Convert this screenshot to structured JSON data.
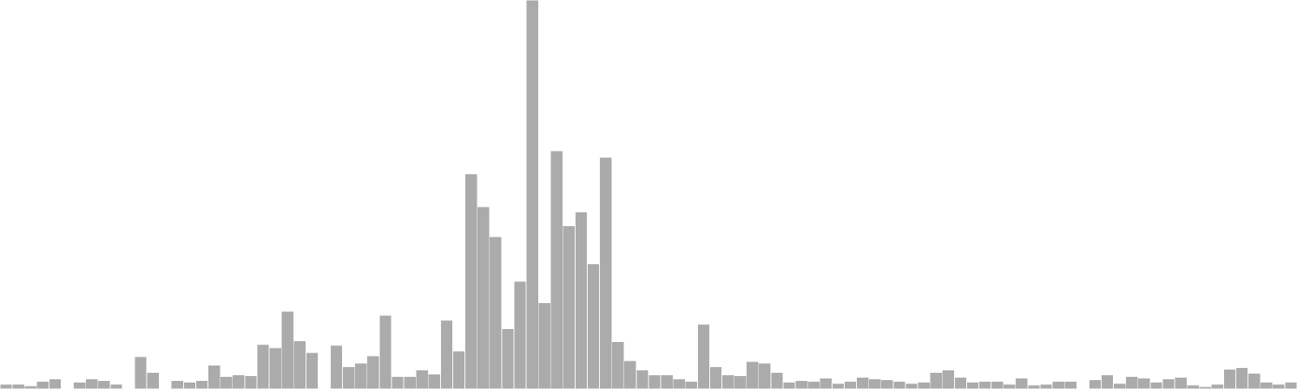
{
  "chart_data": {
    "type": "bar",
    "title": "",
    "xlabel": "",
    "ylabel": "",
    "ylim": [
      0,
      470
    ],
    "grid": false,
    "legend": "none",
    "bar_color": "#ababab",
    "bar_edge_color": "#ffffff",
    "values": [
      6,
      6,
      4,
      9,
      12,
      0,
      8,
      12,
      10,
      6,
      1,
      39,
      20,
      0,
      10,
      8,
      10,
      29,
      15,
      17,
      16,
      54,
      50,
      94,
      58,
      44,
      0,
      53,
      27,
      31,
      40,
      89,
      15,
      15,
      23,
      18,
      83,
      46,
      260,
      220,
      184,
      73,
      130,
      480,
      104,
      288,
      197,
      214,
      151,
      280,
      57,
      34,
      23,
      17,
      17,
      12,
      9,
      78,
      27,
      17,
      16,
      33,
      31,
      20,
      8,
      10,
      9,
      13,
      7,
      9,
      14,
      12,
      11,
      9,
      7,
      8,
      20,
      23,
      14,
      8,
      9,
      9,
      6,
      13,
      5,
      6,
      9,
      9,
      1,
      11,
      17,
      7,
      15,
      13,
      8,
      12,
      14,
      5,
      3,
      6,
      24,
      26,
      19,
      8,
      6,
      8
    ]
  }
}
